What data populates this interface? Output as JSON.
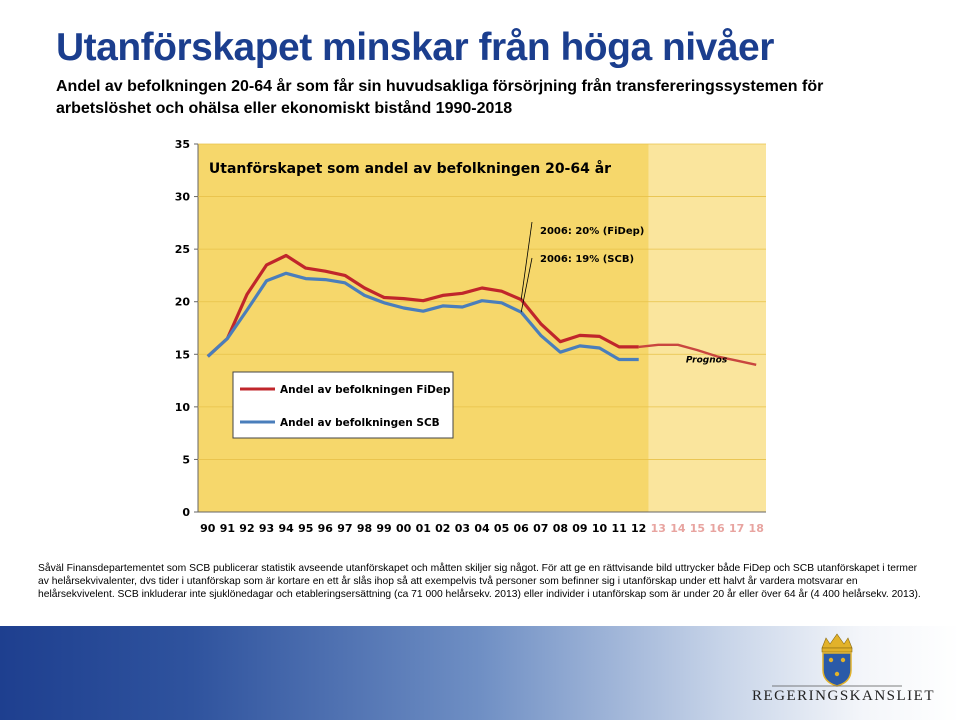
{
  "header": {
    "title": "Utanförskapet minskar från höga nivåer",
    "subtitle": "Andel av befolkningen 20-64 år som får sin huvudsakliga försörjning från transfereringssystemen för arbetslöshet och ohälsa eller ekonomiskt bistånd 1990-2018"
  },
  "chart_data": {
    "type": "line",
    "title": "Utanförskapet som andel av befolkningen 20-64 år",
    "xlabel": "",
    "ylabel": "",
    "ylim": [
      0,
      35
    ],
    "yticks": [
      0,
      5,
      10,
      15,
      20,
      25,
      30,
      35
    ],
    "categories": [
      "90",
      "91",
      "92",
      "93",
      "94",
      "95",
      "96",
      "97",
      "98",
      "99",
      "00",
      "01",
      "02",
      "03",
      "04",
      "05",
      "06",
      "07",
      "08",
      "09",
      "10",
      "11",
      "12",
      "13",
      "14",
      "15",
      "16",
      "17",
      "18"
    ],
    "forecast_start": "13",
    "forecast_label": "Prognos",
    "series": [
      {
        "name": "Andel av befolkningen FiDep",
        "color": "#c0262b",
        "values": [
          14.8,
          16.5,
          20.7,
          23.5,
          24.4,
          23.2,
          22.9,
          22.5,
          21.3,
          20.4,
          20.3,
          20.1,
          20.6,
          20.8,
          21.3,
          21.0,
          20.2,
          17.9,
          16.2,
          16.8,
          16.7,
          15.7,
          15.7,
          15.9,
          15.9,
          15.4,
          14.8,
          14.4,
          14.0
        ]
      },
      {
        "name": "Andel av befolkningen SCB",
        "color": "#4a7ebb",
        "values": [
          14.8,
          16.5,
          19.2,
          22.0,
          22.7,
          22.2,
          22.1,
          21.8,
          20.6,
          19.9,
          19.4,
          19.1,
          19.6,
          19.5,
          20.1,
          19.9,
          19.0,
          16.8,
          15.2,
          15.8,
          15.6,
          14.5,
          14.5,
          null,
          null,
          null,
          null,
          null,
          null
        ]
      }
    ],
    "annotations": [
      {
        "text": "2006: 20% (FiDep)",
        "x": "06",
        "y": 20.2
      },
      {
        "text": "2006: 19% (SCB)",
        "x": "06",
        "y": 19.0
      }
    ],
    "colors": {
      "plot_background": "#f6d76b",
      "forecast_background": "#fae59d",
      "forecast_line": "#c9463f",
      "tick_label_forecast": "#e8a4a0"
    }
  },
  "footnote": "Såväl Finansdepartementet som SCB publicerar statistik avseende utanförskapet och måtten skiljer sig något. För att ge en rättvisande bild uttrycker både FiDep och SCB utanförskapet i termer av helårsekvivalenter, dvs tider i utanförskap som är kortare en ett år slås ihop så att exempelvis två personer som befinner sig i utanförskap under ett halvt år vardera motsvarar en helårsekvivelent.  SCB inkluderar inte sjuklönedagar och etableringsersättning (ca 71 000 helårsekv. 2013) eller individer i utanförskap som är under 20 år eller över 64 år (4 400 helårsekv. 2013).",
  "logo": {
    "text": "REGERINGSKANSLIET",
    "icon": "crown-shield-icon"
  }
}
